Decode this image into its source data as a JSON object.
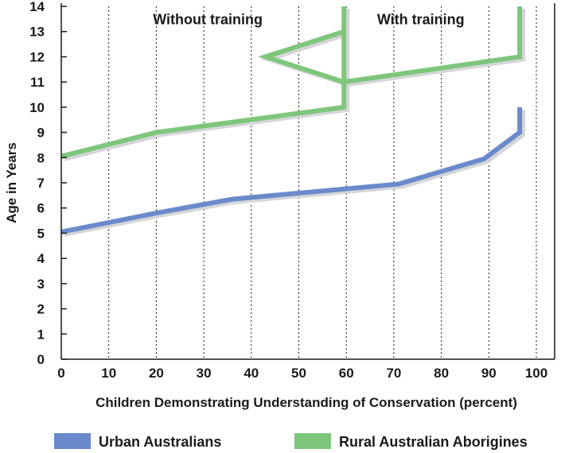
{
  "chart_data": {
    "type": "line",
    "xlabel": "Children Demonstrating Understanding of Conservation (percent)",
    "ylabel": "Age in Years",
    "xlim": [
      0,
      100
    ],
    "ylim": [
      0,
      14
    ],
    "x_ticks": [
      0,
      10,
      20,
      30,
      40,
      50,
      60,
      70,
      80,
      90,
      100
    ],
    "y_ticks": [
      0,
      1,
      2,
      3,
      4,
      5,
      6,
      7,
      8,
      9,
      10,
      11,
      12,
      13,
      14
    ],
    "grid": {
      "vertical_dotted": true,
      "horizontal": false
    },
    "annotations": [
      {
        "text": "Without training",
        "x": 30,
        "y": 13.7
      },
      {
        "text": "With training",
        "x": 75,
        "y": 13.7
      }
    ],
    "legend_placement": "bottom",
    "series": [
      {
        "name": "Urban Australians",
        "color": "#6a8acb",
        "points": [
          [
            0,
            5.05
          ],
          [
            20,
            5.8
          ],
          [
            36,
            6.35
          ],
          [
            71,
            6.95
          ],
          [
            89,
            7.95
          ],
          [
            96.5,
            9.0
          ],
          [
            96.5,
            10.0
          ]
        ]
      },
      {
        "name": "Rural Australian Aborigines",
        "color": "#7ec67c",
        "points": [
          [
            0,
            8.05
          ],
          [
            20,
            9.0
          ],
          [
            59.5,
            10.0
          ],
          [
            59.5,
            11.0
          ],
          [
            43,
            12.0
          ],
          [
            59.5,
            13.0
          ],
          [
            59.5,
            14.0
          ],
          [
            59.5,
            11.0
          ],
          [
            96.5,
            12.0
          ],
          [
            96.5,
            14.0
          ]
        ]
      }
    ]
  }
}
